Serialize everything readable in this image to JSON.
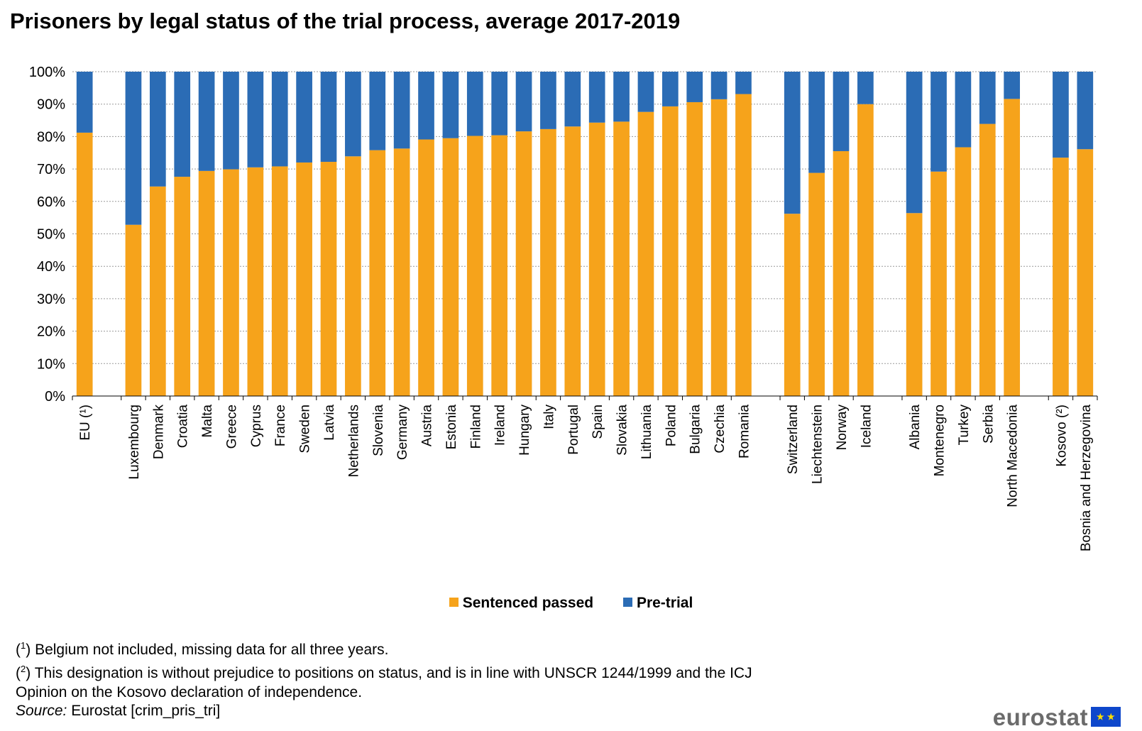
{
  "title": "Prisoners by legal status of the trial process, average 2017-2019",
  "legend": [
    {
      "label": "Sentenced passed",
      "color": "#f6a31b"
    },
    {
      "label": "Pre-trial",
      "color": "#2b6cb5"
    }
  ],
  "notes": {
    "note1_mark": "1",
    "note1_text": " Belgium not included, missing data for all three years.",
    "note2_mark": "2",
    "note2_text": " This designation is without prejudice to positions on status, and is in line with UNSCR 1244/1999 and the ICJ",
    "note2_text_cont": "Opinion on the Kosovo  declaration of independence."
  },
  "source": {
    "label": "Source:",
    "text": " Eurostat [crim_pris_tri]"
  },
  "logo": {
    "text": "eurostat",
    "flag_icon": "eu-flag-icon"
  },
  "chart_data": {
    "type": "bar",
    "stacked": true,
    "groups": [
      [
        "EU (¹)"
      ],
      [
        "Luxembourg",
        "Denmark",
        "Croatia",
        "Malta",
        "Greece",
        "Cyprus",
        "France",
        "Sweden",
        "Latvia",
        "Netherlands",
        "Slovenia",
        "Germany",
        "Austria",
        "Estonia",
        "Finland",
        "Ireland",
        "Hungary",
        "Italy",
        "Portugal",
        "Spain",
        "Slovakia",
        "Lithuania",
        "Poland",
        "Bulgaria",
        "Czechia",
        "Romania"
      ],
      [
        "Switzerland",
        "Liechtenstein",
        "Norway",
        "Iceland"
      ],
      [
        "Albania",
        "Montenegro",
        "Turkey",
        "Serbia",
        "North Macedonia"
      ],
      [
        "Kosovo (²)",
        "Bosnia and Herzegovina"
      ]
    ],
    "categories": [
      "EU (¹)",
      "Luxembourg",
      "Denmark",
      "Croatia",
      "Malta",
      "Greece",
      "Cyprus",
      "France",
      "Sweden",
      "Latvia",
      "Netherlands",
      "Slovenia",
      "Germany",
      "Austria",
      "Estonia",
      "Finland",
      "Ireland",
      "Hungary",
      "Italy",
      "Portugal",
      "Spain",
      "Slovakia",
      "Lithuania",
      "Poland",
      "Bulgaria",
      "Czechia",
      "Romania",
      "Switzerland",
      "Liechtenstein",
      "Norway",
      "Iceland",
      "Albania",
      "Montenegro",
      "Turkey",
      "Serbia",
      "North Macedonia",
      "Kosovo (²)",
      "Bosnia and Herzegovina"
    ],
    "series": [
      {
        "name": "Sentenced passed",
        "color": "#f6a31b",
        "values": [
          81.2,
          52.8,
          64.6,
          67.6,
          69.4,
          69.9,
          70.5,
          70.8,
          72.0,
          72.2,
          73.9,
          75.8,
          76.3,
          79.1,
          79.5,
          80.2,
          80.4,
          81.6,
          82.3,
          83.1,
          84.3,
          84.6,
          87.6,
          89.3,
          90.6,
          91.5,
          93.1,
          56.2,
          68.8,
          75.5,
          90.0,
          56.4,
          69.2,
          76.7,
          83.9,
          91.6,
          73.5,
          76.1
        ]
      },
      {
        "name": "Pre-trial",
        "color": "#2b6cb5",
        "values": [
          18.8,
          47.2,
          35.4,
          32.4,
          30.6,
          30.1,
          29.5,
          29.2,
          28.0,
          27.8,
          26.1,
          24.2,
          23.7,
          20.9,
          20.5,
          19.8,
          19.6,
          18.4,
          17.7,
          16.9,
          15.7,
          15.4,
          12.4,
          10.7,
          9.4,
          8.5,
          6.9,
          43.8,
          31.2,
          24.5,
          10.0,
          43.6,
          30.8,
          23.3,
          16.1,
          8.4,
          26.5,
          23.9
        ]
      }
    ],
    "y_ticks": [
      "0%",
      "10%",
      "20%",
      "30%",
      "40%",
      "50%",
      "60%",
      "70%",
      "80%",
      "90%",
      "100%"
    ],
    "ylim": [
      0,
      100
    ],
    "grid": true,
    "legend_position": "bottom"
  }
}
